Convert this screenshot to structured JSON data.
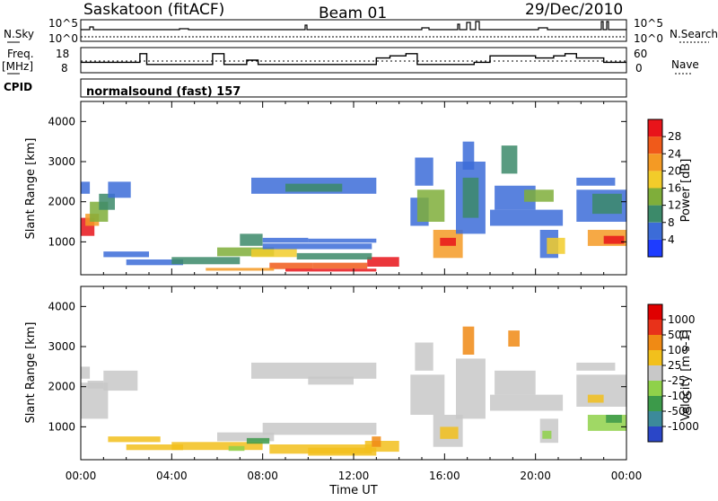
{
  "header": {
    "station": "Saskatoon (fitACF)",
    "beam": "Beam 01",
    "date": "29/Dec/2010"
  },
  "strip": {
    "nsky_label": "N.Sky",
    "nsearch_label": "N.Search",
    "nsky_top": "10^5",
    "nsky_bottom": "10^0",
    "nsearch_top": "10^5",
    "nsearch_bottom": "10^0",
    "freq_label_1": "Freq.",
    "freq_label_2": "[MHz]",
    "freq_top": "18",
    "freq_bottom": "8",
    "nave_label": "Nave",
    "nave_top": "60",
    "nave_bottom": "0",
    "cpid_label": "CPID",
    "cpid_value": "normalsound (fast) 157"
  },
  "chart_data": [
    {
      "type": "line",
      "name": "frequency",
      "x_range": [
        0,
        24
      ],
      "ylim": [
        8,
        18
      ],
      "x": [
        0,
        0.3,
        0.3,
        2.6,
        2.6,
        2.9,
        2.9,
        5.8,
        5.8,
        6.3,
        6.3,
        6.9,
        6.9,
        7.3,
        7.3,
        7.8,
        7.8,
        13.0,
        13.0,
        13.6,
        13.6,
        14.3,
        14.3,
        14.8,
        14.8,
        15.0,
        15.0,
        17.3,
        17.3,
        18.0,
        18.0,
        20.0,
        20.0,
        20.8,
        20.8,
        21.3,
        21.3,
        21.8,
        21.8,
        23.0,
        23.0,
        24.0
      ],
      "y": [
        12,
        12,
        12,
        12,
        16,
        16,
        11,
        11,
        16,
        16,
        11,
        11,
        11,
        11,
        13,
        13,
        11,
        11,
        14,
        14,
        15,
        15,
        16,
        16,
        11,
        11,
        11,
        11,
        12,
        12,
        15,
        15,
        14,
        14,
        15,
        15,
        16,
        16,
        14,
        14,
        12,
        12
      ]
    },
    {
      "type": "heatmap",
      "title": "Power",
      "xlabel": "Time UT",
      "ylabel": "Slant Range [km]",
      "x_range": [
        0,
        24
      ],
      "ylim": [
        180,
        4500
      ],
      "xticks": [
        "00:00",
        "04:00",
        "08:00",
        "12:00",
        "16:00",
        "20:00",
        "00:00"
      ],
      "yticks": [
        1000,
        2000,
        3000,
        4000
      ],
      "colorbar": {
        "label": "Power [dB]",
        "ticks": [
          "4",
          "8",
          "12",
          "16",
          "20",
          "24",
          "28"
        ],
        "colors": [
          "#1e3cff",
          "#3c6cd8",
          "#3c8a6a",
          "#7fae3a",
          "#f2cc2a",
          "#f49a24",
          "#f05a1a",
          "#e8141a"
        ]
      }
    },
    {
      "type": "heatmap",
      "title": "Velocity",
      "xlabel": "Time UT",
      "ylabel": "Slant Range [km]",
      "x_range": [
        0,
        24
      ],
      "ylim": [
        180,
        4500
      ],
      "xticks": [
        "00:00",
        "04:00",
        "08:00",
        "12:00",
        "16:00",
        "20:00",
        "00:00"
      ],
      "yticks": [
        1000,
        2000,
        3000,
        4000
      ],
      "colorbar": {
        "label": "Velocity [m s-1]",
        "ticks": [
          "1000",
          "500",
          "100",
          "25",
          "-25",
          "-100",
          "-500",
          "-1000"
        ],
        "colors": [
          "#2a46c8",
          "#3c8a9a",
          "#3c9a4a",
          "#8fd14a",
          "#c8c8c8",
          "#f2c01c",
          "#f08a14",
          "#e8321a",
          "#e00000"
        ]
      }
    }
  ],
  "cells": {
    "power": [
      [
        0,
        0.6,
        1150,
        1600,
        "#e8141a"
      ],
      [
        0.2,
        0.8,
        1400,
        1700,
        "#f49a24"
      ],
      [
        0.4,
        1.2,
        1500,
        2000,
        "#7fae3a"
      ],
      [
        0.8,
        1.5,
        1800,
        2200,
        "#3c8a6a"
      ],
      [
        1.2,
        2.2,
        2100,
        2500,
        "#3c6cd8"
      ],
      [
        0,
        0.4,
        2200,
        2500,
        "#3c6cd8"
      ],
      [
        1.0,
        3.0,
        620,
        760,
        "#3c6cd8"
      ],
      [
        2.0,
        4.5,
        420,
        560,
        "#3c6cd8"
      ],
      [
        4.0,
        7.0,
        440,
        620,
        "#3c8a6a"
      ],
      [
        6.0,
        8.5,
        640,
        860,
        "#7fae3a"
      ],
      [
        7.0,
        8.0,
        900,
        1200,
        "#3c8a6a"
      ],
      [
        8.0,
        10.0,
        980,
        1100,
        "#3c6cd8"
      ],
      [
        7.5,
        9.5,
        620,
        820,
        "#f2cc2a"
      ],
      [
        8.3,
        10.2,
        320,
        480,
        "#f05a1a"
      ],
      [
        10.2,
        12.6,
        330,
        480,
        "#f05a1a"
      ],
      [
        12.6,
        14.0,
        380,
        620,
        "#e8141a"
      ],
      [
        9.0,
        13.0,
        260,
        330,
        "#e8141a"
      ],
      [
        5.5,
        8.5,
        280,
        350,
        "#f49a24"
      ],
      [
        9.5,
        12.8,
        560,
        720,
        "#3c8a6a"
      ],
      [
        10.0,
        13.0,
        980,
        1080,
        "#3c6cd8"
      ],
      [
        8.0,
        12.8,
        820,
        960,
        "#3c6cd8"
      ],
      [
        7.5,
        13.0,
        2200,
        2600,
        "#3c6cd8"
      ],
      [
        9.0,
        11.5,
        2250,
        2450,
        "#3c8a6a"
      ],
      [
        14.5,
        15.3,
        1400,
        2100,
        "#3c6cd8"
      ],
      [
        14.8,
        16.0,
        1500,
        2300,
        "#7fae3a"
      ],
      [
        15.5,
        16.8,
        600,
        1300,
        "#f49a24"
      ],
      [
        15.8,
        16.5,
        900,
        1100,
        "#e8141a"
      ],
      [
        16.5,
        17.8,
        1200,
        3000,
        "#3c6cd8"
      ],
      [
        16.8,
        17.5,
        1600,
        2600,
        "#3c8a6a"
      ],
      [
        16.8,
        17.3,
        2800,
        3500,
        "#3c6cd8"
      ],
      [
        14.7,
        15.5,
        2400,
        3100,
        "#3c6cd8"
      ],
      [
        18.2,
        20.0,
        1800,
        2400,
        "#3c6cd8"
      ],
      [
        18.5,
        19.2,
        2700,
        3400,
        "#3c8a6a"
      ],
      [
        18.0,
        21.2,
        1400,
        1800,
        "#3c6cd8"
      ],
      [
        19.5,
        20.8,
        2000,
        2300,
        "#7fae3a"
      ],
      [
        20.2,
        21.0,
        600,
        1300,
        "#3c6cd8"
      ],
      [
        21.8,
        24.0,
        1500,
        2300,
        "#3c6cd8"
      ],
      [
        22.5,
        23.8,
        1700,
        2200,
        "#3c8a6a"
      ],
      [
        22.3,
        24.0,
        900,
        1300,
        "#f49a24"
      ],
      [
        23.0,
        23.9,
        950,
        1150,
        "#e8141a"
      ],
      [
        21.8,
        23.5,
        2400,
        2600,
        "#3c6cd8"
      ],
      [
        20.5,
        21.3,
        700,
        1100,
        "#f2cc2a"
      ]
    ],
    "velocity": [
      [
        0,
        1.2,
        1200,
        2100,
        "#c8c8c8"
      ],
      [
        1.0,
        2.5,
        1900,
        2400,
        "#c8c8c8"
      ],
      [
        0,
        0.4,
        2200,
        2500,
        "#c8c8c8"
      ],
      [
        1.2,
        3.5,
        620,
        760,
        "#f2c01c"
      ],
      [
        2.0,
        4.5,
        420,
        560,
        "#f2c01c"
      ],
      [
        4.0,
        8.0,
        420,
        620,
        "#f2c01c"
      ],
      [
        6.0,
        8.5,
        640,
        860,
        "#c8c8c8"
      ],
      [
        6.5,
        7.2,
        400,
        520,
        "#8fd14a"
      ],
      [
        7.3,
        8.3,
        580,
        720,
        "#3c9a4a"
      ],
      [
        8.0,
        13.0,
        800,
        1100,
        "#c8c8c8"
      ],
      [
        8.3,
        12.8,
        330,
        560,
        "#f2c01c"
      ],
      [
        10.0,
        13.0,
        280,
        480,
        "#f2c01c"
      ],
      [
        12.5,
        14.0,
        380,
        650,
        "#f2c01c"
      ],
      [
        12.8,
        13.2,
        500,
        760,
        "#f08a14"
      ],
      [
        7.5,
        13.0,
        2200,
        2600,
        "#c8c8c8"
      ],
      [
        10.0,
        12.0,
        2050,
        2250,
        "#c8c8c8"
      ],
      [
        14.5,
        16.0,
        1300,
        2300,
        "#c8c8c8"
      ],
      [
        15.5,
        16.8,
        500,
        1300,
        "#c8c8c8"
      ],
      [
        15.8,
        16.6,
        700,
        1000,
        "#f2c01c"
      ],
      [
        16.5,
        17.8,
        1200,
        2700,
        "#c8c8c8"
      ],
      [
        16.8,
        17.3,
        2800,
        3500,
        "#f08a14"
      ],
      [
        14.7,
        15.5,
        2400,
        3100,
        "#c8c8c8"
      ],
      [
        18.2,
        20.0,
        1800,
        2400,
        "#c8c8c8"
      ],
      [
        18.8,
        19.3,
        3000,
        3400,
        "#f08a14"
      ],
      [
        18.0,
        21.2,
        1400,
        1800,
        "#c8c8c8"
      ],
      [
        20.2,
        21.0,
        600,
        1200,
        "#c8c8c8"
      ],
      [
        20.3,
        20.7,
        700,
        900,
        "#8fd14a"
      ],
      [
        21.8,
        24.0,
        1500,
        2300,
        "#c8c8c8"
      ],
      [
        22.3,
        23.0,
        1600,
        1800,
        "#f2c01c"
      ],
      [
        22.3,
        24.0,
        900,
        1300,
        "#8fd14a"
      ],
      [
        23.1,
        23.8,
        1100,
        1300,
        "#3c9a4a"
      ],
      [
        21.8,
        23.5,
        2400,
        2600,
        "#c8c8c8"
      ],
      [
        0.3,
        1.0,
        1950,
        2150,
        "#c8c8c8"
      ]
    ]
  }
}
